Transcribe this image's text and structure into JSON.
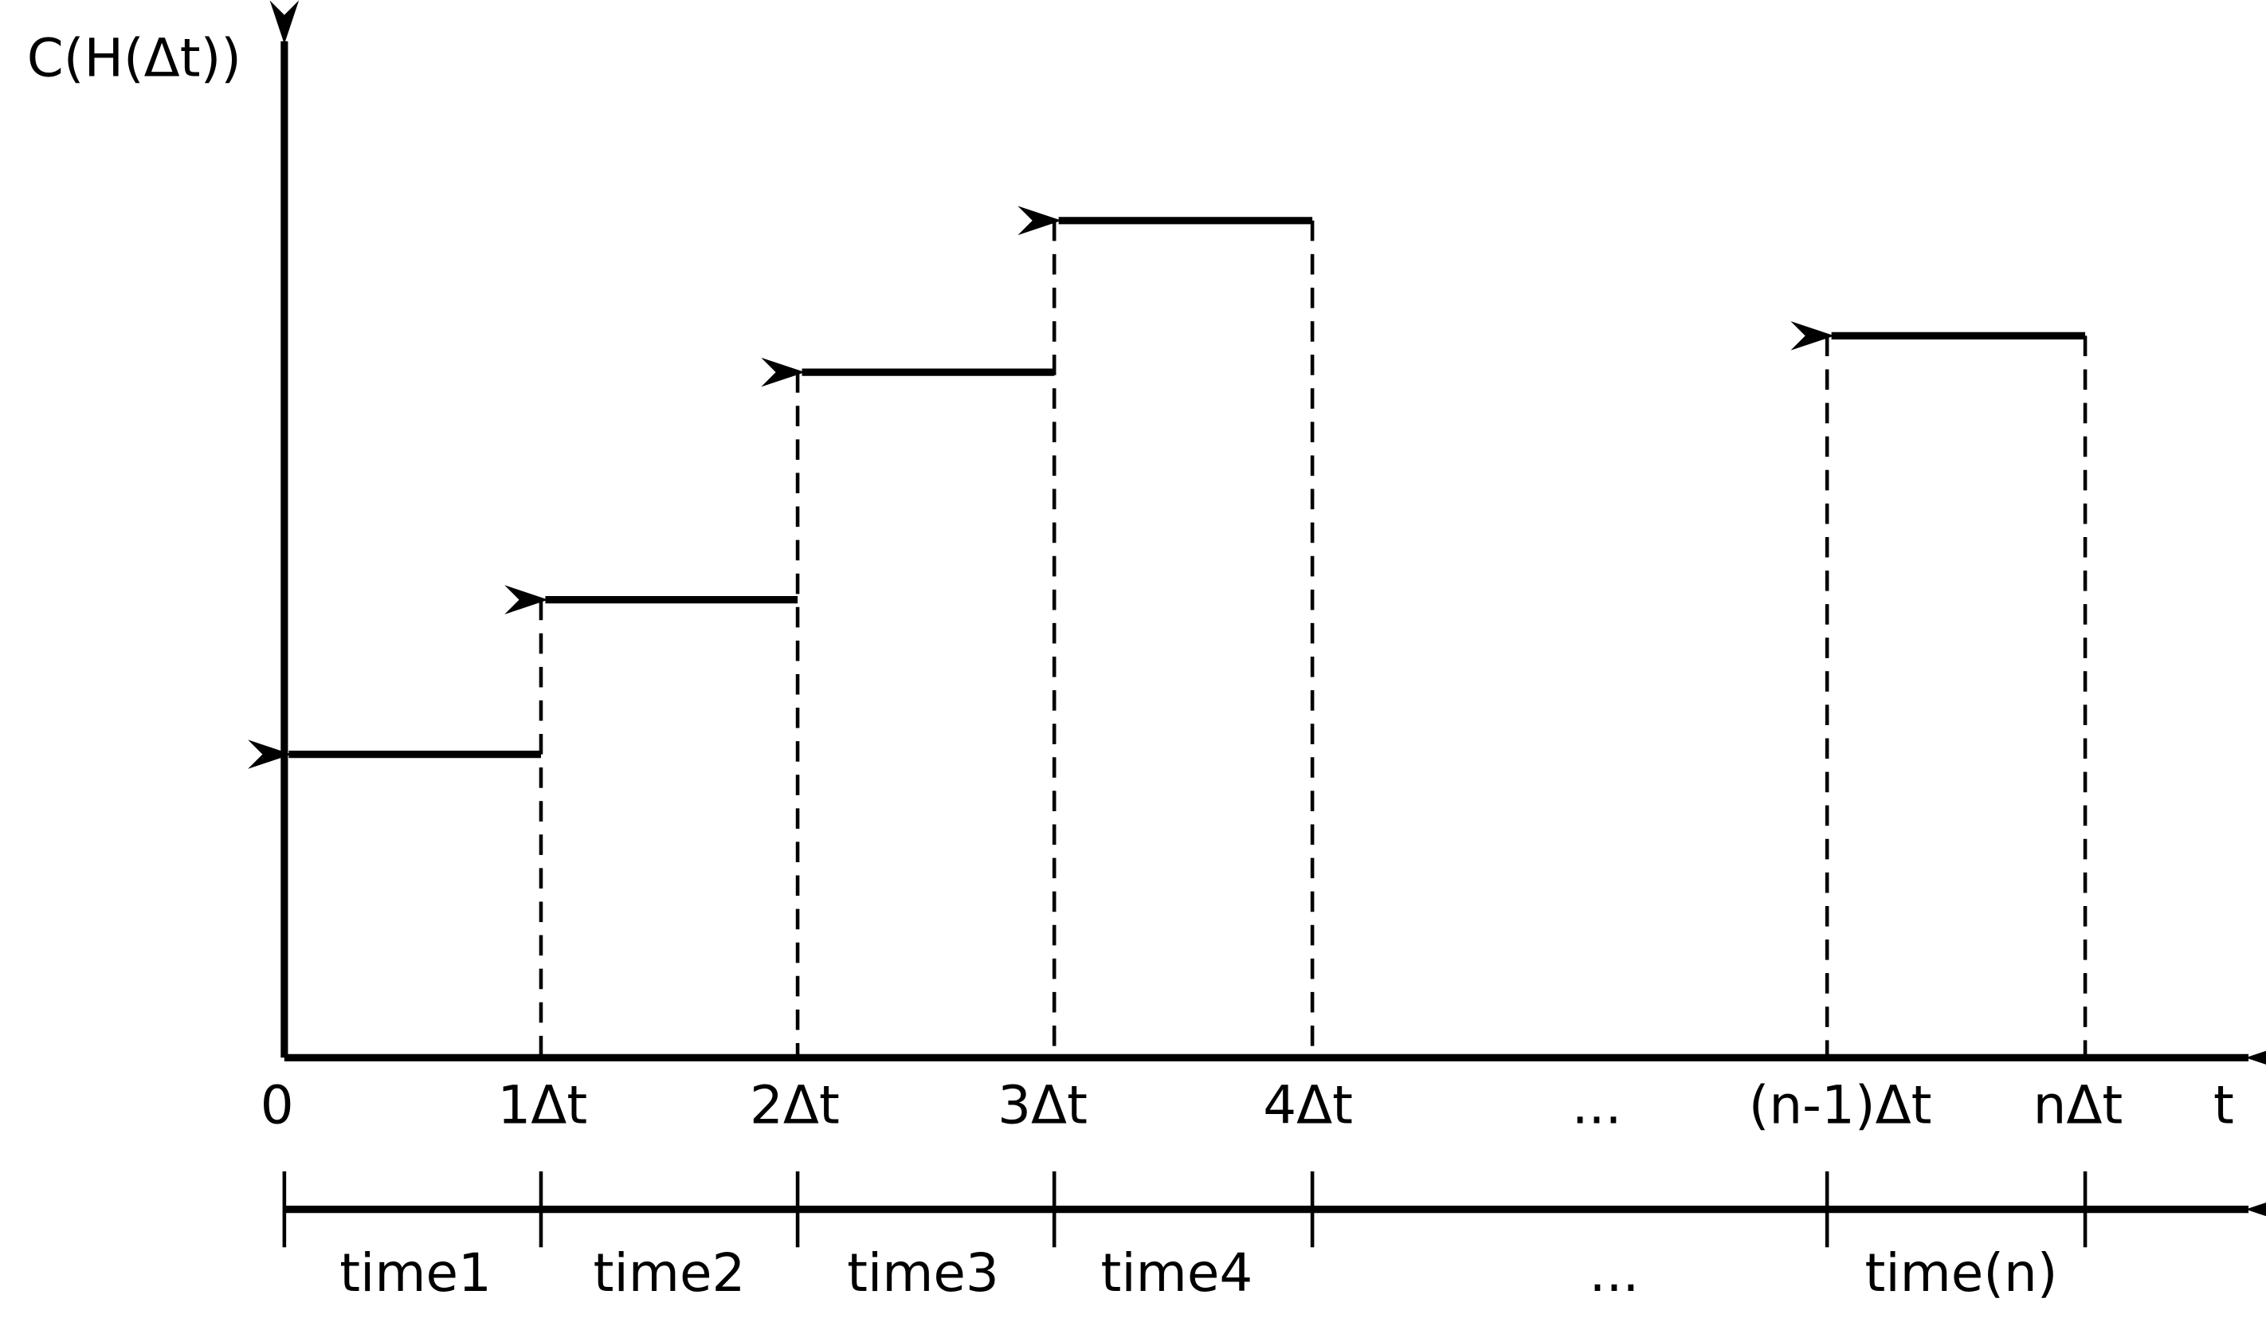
{
  "y_axis_label": "C(H(Δt))",
  "x_axis_label": "t",
  "ticks": [
    "0",
    "1Δt",
    "2Δt",
    "3Δt",
    "4Δt",
    "...",
    "(n-1)Δt",
    "nΔt"
  ],
  "periods": [
    "time1",
    "time2",
    "time3",
    "time4",
    "...",
    "time(n)"
  ]
}
